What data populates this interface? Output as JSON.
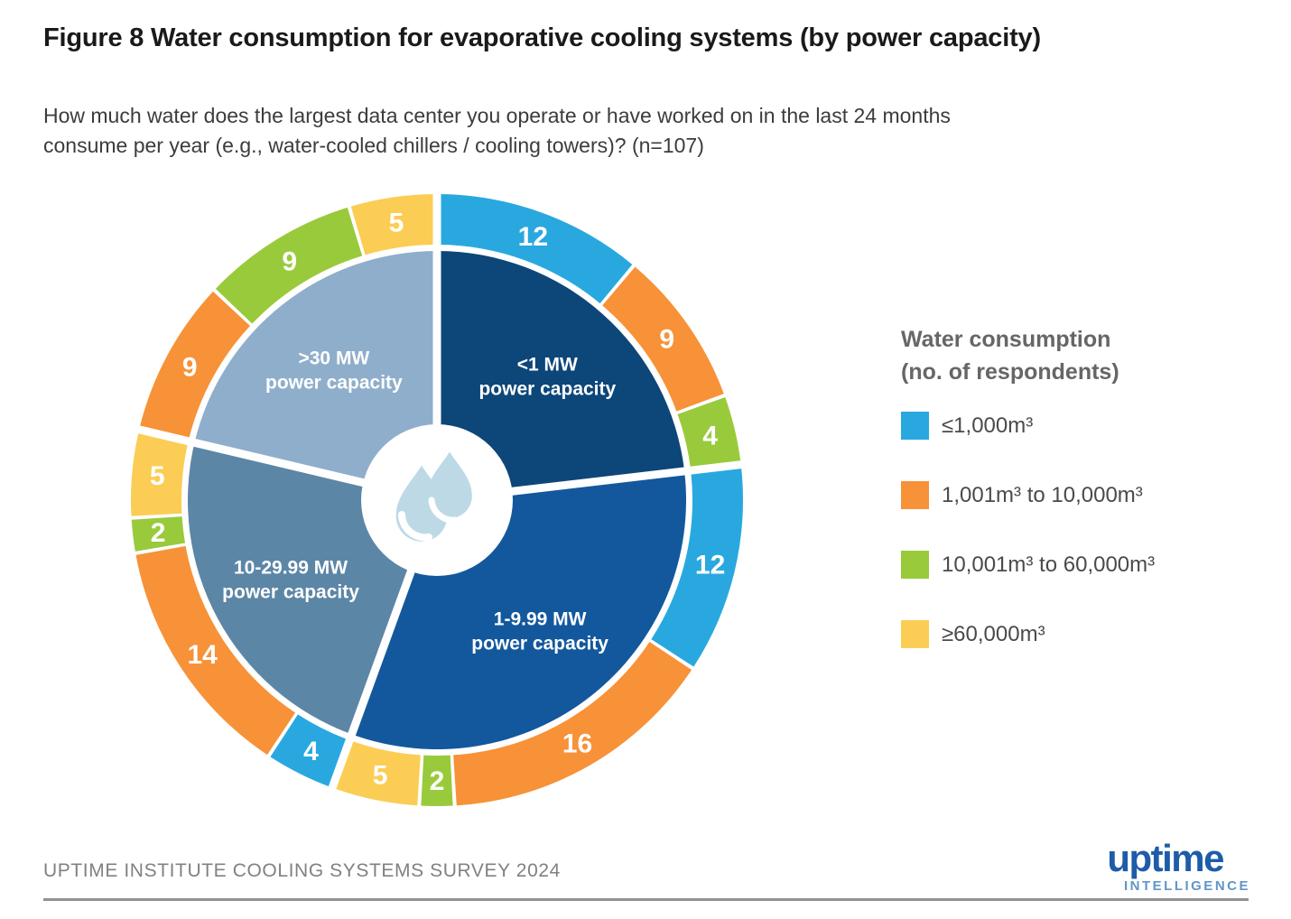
{
  "title": "Figure 8 Water consumption for evaporative cooling systems (by power capacity)",
  "question": {
    "line1": "How much water does the largest data center you operate or have worked on in the last 24 months",
    "line2": "consume per year (e.g., water-cooled chillers / cooling towers)? (n=107)"
  },
  "legend": {
    "title_line1": "Water consumption",
    "title_line2": "(no. of respondents)",
    "items": [
      {
        "label": "≤1,000m³",
        "bucket": "le_1000"
      },
      {
        "label": "1,001m³ to 10,000m³",
        "bucket": "b1001_to_10000"
      },
      {
        "label": "10,001m³ to 60,000m³",
        "bucket": "b10001_to_60000"
      },
      {
        "label": "≥60,000m³",
        "bucket": "ge_60000"
      }
    ]
  },
  "footer": {
    "source": "UPTIME INSTITUTE COOLING SYSTEMS SURVEY 2024",
    "logo_brand": "uptime",
    "logo_sub": "INTELLIGENCE"
  },
  "chart_data": {
    "type": "pie",
    "variant": "sunburst-donut",
    "title": "Water consumption for evaporative cooling systems (by power capacity)",
    "n": 107,
    "units_total": 108,
    "legend_position": "right",
    "buckets": {
      "le_1000": {
        "label": "≤1,000m³",
        "color": "#29A8E0"
      },
      "b1001_to_10000": {
        "label": "1,001m³ to 10,000m³",
        "color": "#F79238"
      },
      "b10001_to_60000": {
        "label": "10,001m³ to 60,000m³",
        "color": "#99CA3C"
      },
      "ge_60000": {
        "label": "≥60,000m³",
        "color": "#FBCD55"
      }
    },
    "groups": [
      {
        "name": "<1 MW power capacity",
        "label_line1": "<1 MW",
        "label_line2": "power capacity",
        "color": "#0D4679",
        "segments": [
          {
            "bucket": "le_1000",
            "value": 12
          },
          {
            "bucket": "b1001_to_10000",
            "value": 9
          },
          {
            "bucket": "b10001_to_60000",
            "value": 4
          }
        ]
      },
      {
        "name": "1-9.99 MW power capacity",
        "label_line1": "1-9.99 MW",
        "label_line2": "power capacity",
        "color": "#13589D",
        "segments": [
          {
            "bucket": "le_1000",
            "value": 12
          },
          {
            "bucket": "b1001_to_10000",
            "value": 16
          },
          {
            "bucket": "b10001_to_60000",
            "value": 2
          },
          {
            "bucket": "ge_60000",
            "value": 5
          }
        ]
      },
      {
        "name": "10-29.99 MW power capacity",
        "label_line1": "10-29.99 MW",
        "label_line2": "power capacity",
        "color": "#5C86A6",
        "segments": [
          {
            "bucket": "le_1000",
            "value": 4
          },
          {
            "bucket": "b1001_to_10000",
            "value": 14
          },
          {
            "bucket": "b10001_to_60000",
            "value": 2
          },
          {
            "bucket": "ge_60000",
            "value": 5
          }
        ]
      },
      {
        "name": ">30 MW power capacity",
        "label_line1": ">30 MW",
        "label_line2": "power capacity",
        "color": "#8FAECB",
        "segments": [
          {
            "bucket": "b1001_to_10000",
            "value": 9
          },
          {
            "bucket": "b10001_to_60000",
            "value": 9
          },
          {
            "bucket": "ge_60000",
            "value": 5
          }
        ]
      }
    ],
    "center_icon": "water-drops",
    "center_icon_color": "#BDD9E6"
  }
}
